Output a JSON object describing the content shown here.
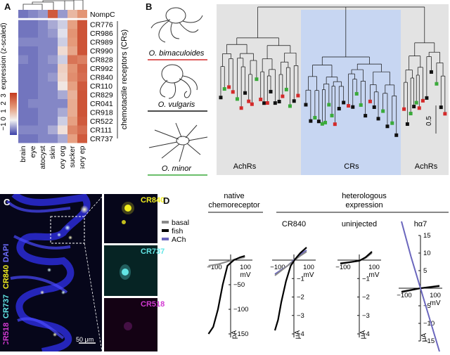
{
  "panels": {
    "a": {
      "label": "A",
      "genes": [
        "NompC",
        "CR776",
        "CR986",
        "CR989",
        "CR990",
        "CR828",
        "CR992",
        "CR840",
        "CR110",
        "CR829",
        "CR041",
        "CR918",
        "CR522",
        "CR111",
        "CR737"
      ],
      "tissues": [
        "brain",
        "eye",
        "statocyst",
        "skin",
        "olfactory org",
        "sucker",
        "sensory ep"
      ],
      "heat_title": "expression (z-scaled)",
      "scale_ticks": [
        "3",
        "2",
        "1",
        "0",
        "−1"
      ],
      "group_label": "chemotactile receptors (CRs)",
      "z_values": [
        [
          -0.7,
          -0.6,
          -0.5,
          2.5,
          -0.5,
          1.0,
          1.6
        ],
        [
          -0.7,
          -0.7,
          -0.6,
          -0.4,
          -0.2,
          1.4,
          2.6
        ],
        [
          -0.7,
          -0.7,
          -0.6,
          -0.5,
          -0.1,
          1.6,
          2.6
        ],
        [
          -0.6,
          -0.6,
          -0.6,
          -0.6,
          -0.2,
          1.5,
          2.6
        ],
        [
          -0.7,
          -0.7,
          -0.6,
          -0.6,
          0.4,
          1.3,
          2.6
        ],
        [
          -0.6,
          -0.7,
          -0.6,
          -0.5,
          -0.2,
          2.1,
          1.9
        ],
        [
          -0.7,
          -0.7,
          -0.6,
          -0.6,
          0.6,
          1.6,
          2.3
        ],
        [
          -0.7,
          -0.7,
          -0.6,
          -0.5,
          0.5,
          1.7,
          2.2
        ],
        [
          -0.7,
          -0.7,
          -0.6,
          -0.6,
          0.2,
          1.4,
          2.5
        ],
        [
          -0.7,
          -0.7,
          -0.6,
          -0.6,
          -0.4,
          1.1,
          2.6
        ],
        [
          -0.7,
          -0.6,
          -0.6,
          -0.6,
          -0.6,
          1.2,
          2.6
        ],
        [
          -0.7,
          -0.7,
          -0.6,
          -0.6,
          -0.4,
          1.2,
          2.6
        ],
        [
          -0.7,
          -0.7,
          -0.6,
          -0.6,
          -0.2,
          1.4,
          2.5
        ],
        [
          -0.6,
          -0.6,
          -0.6,
          -0.4,
          0.3,
          1.8,
          2.2
        ],
        [
          -0.7,
          -0.7,
          -0.6,
          -0.6,
          -0.4,
          1.4,
          2.5
        ]
      ]
    },
    "b": {
      "label": "B",
      "species": [
        {
          "name": "O. bimaculoides",
          "color": "#d42a2a"
        },
        {
          "name": "O. vulgaris",
          "color": "#111111"
        },
        {
          "name": "O. minor",
          "color": "#3aaa3a"
        }
      ],
      "regions": [
        "AchRs",
        "CRs",
        "AchRs"
      ],
      "scale_value": "0.5"
    },
    "c": {
      "label": "C",
      "channels": [
        {
          "name": "DAPI",
          "color": "#6f6fff"
        },
        {
          "name": "CR840",
          "color": "#f2ee1e"
        },
        {
          "name": "CR737",
          "color": "#62e6e6"
        },
        {
          "name": "CR518",
          "color": "#d23ad2"
        }
      ],
      "inset_labels": [
        {
          "name": "CR840",
          "color": "#f2ee1e"
        },
        {
          "name": "CR737",
          "color": "#62e6e6"
        },
        {
          "name": "CR518",
          "color": "#d23ad2"
        }
      ],
      "scale_bar": "50 μm"
    },
    "d": {
      "label": "D",
      "native_title": "native\nchemoreceptor",
      "hetero_title": "heterologous\nexpression",
      "legend": [
        {
          "name": "basal",
          "color": "#8a8a8a"
        },
        {
          "name": "fish",
          "color": "#000000"
        },
        {
          "name": "ACh",
          "color": "#6a66bd"
        }
      ],
      "plots": [
        {
          "title": "",
          "y_unit": "pA",
          "yticks": [
            "−50",
            "−100",
            "−150"
          ],
          "xticks": [
            "−100",
            "100"
          ],
          "x_unit": "mV"
        },
        {
          "title": "CR840",
          "y_unit": "μA",
          "yticks": [
            "−1",
            "−2",
            "−3",
            "−4"
          ],
          "xticks": [
            "−100",
            "100"
          ],
          "x_unit": "mV"
        },
        {
          "title": "uninjected",
          "y_unit": "μA",
          "yticks": [
            "−1",
            "−2",
            "−3",
            "−4"
          ],
          "xticks": [
            "−100",
            "100"
          ],
          "x_unit": "mV"
        },
        {
          "title": "hα7",
          "y_unit": "μA",
          "yticks": [
            "15",
            "10",
            "5",
            "−5",
            "−10",
            "−15"
          ],
          "xticks": [
            "−100",
            "100"
          ],
          "x_unit": "mV"
        }
      ]
    }
  },
  "colors": {
    "heat_low": "#3b3fa8",
    "heat_mid": "#f2f2f2",
    "heat_high": "#c43a1f",
    "tree_bg": "#e3e3e3",
    "cr_region": "#c7d6f2"
  }
}
